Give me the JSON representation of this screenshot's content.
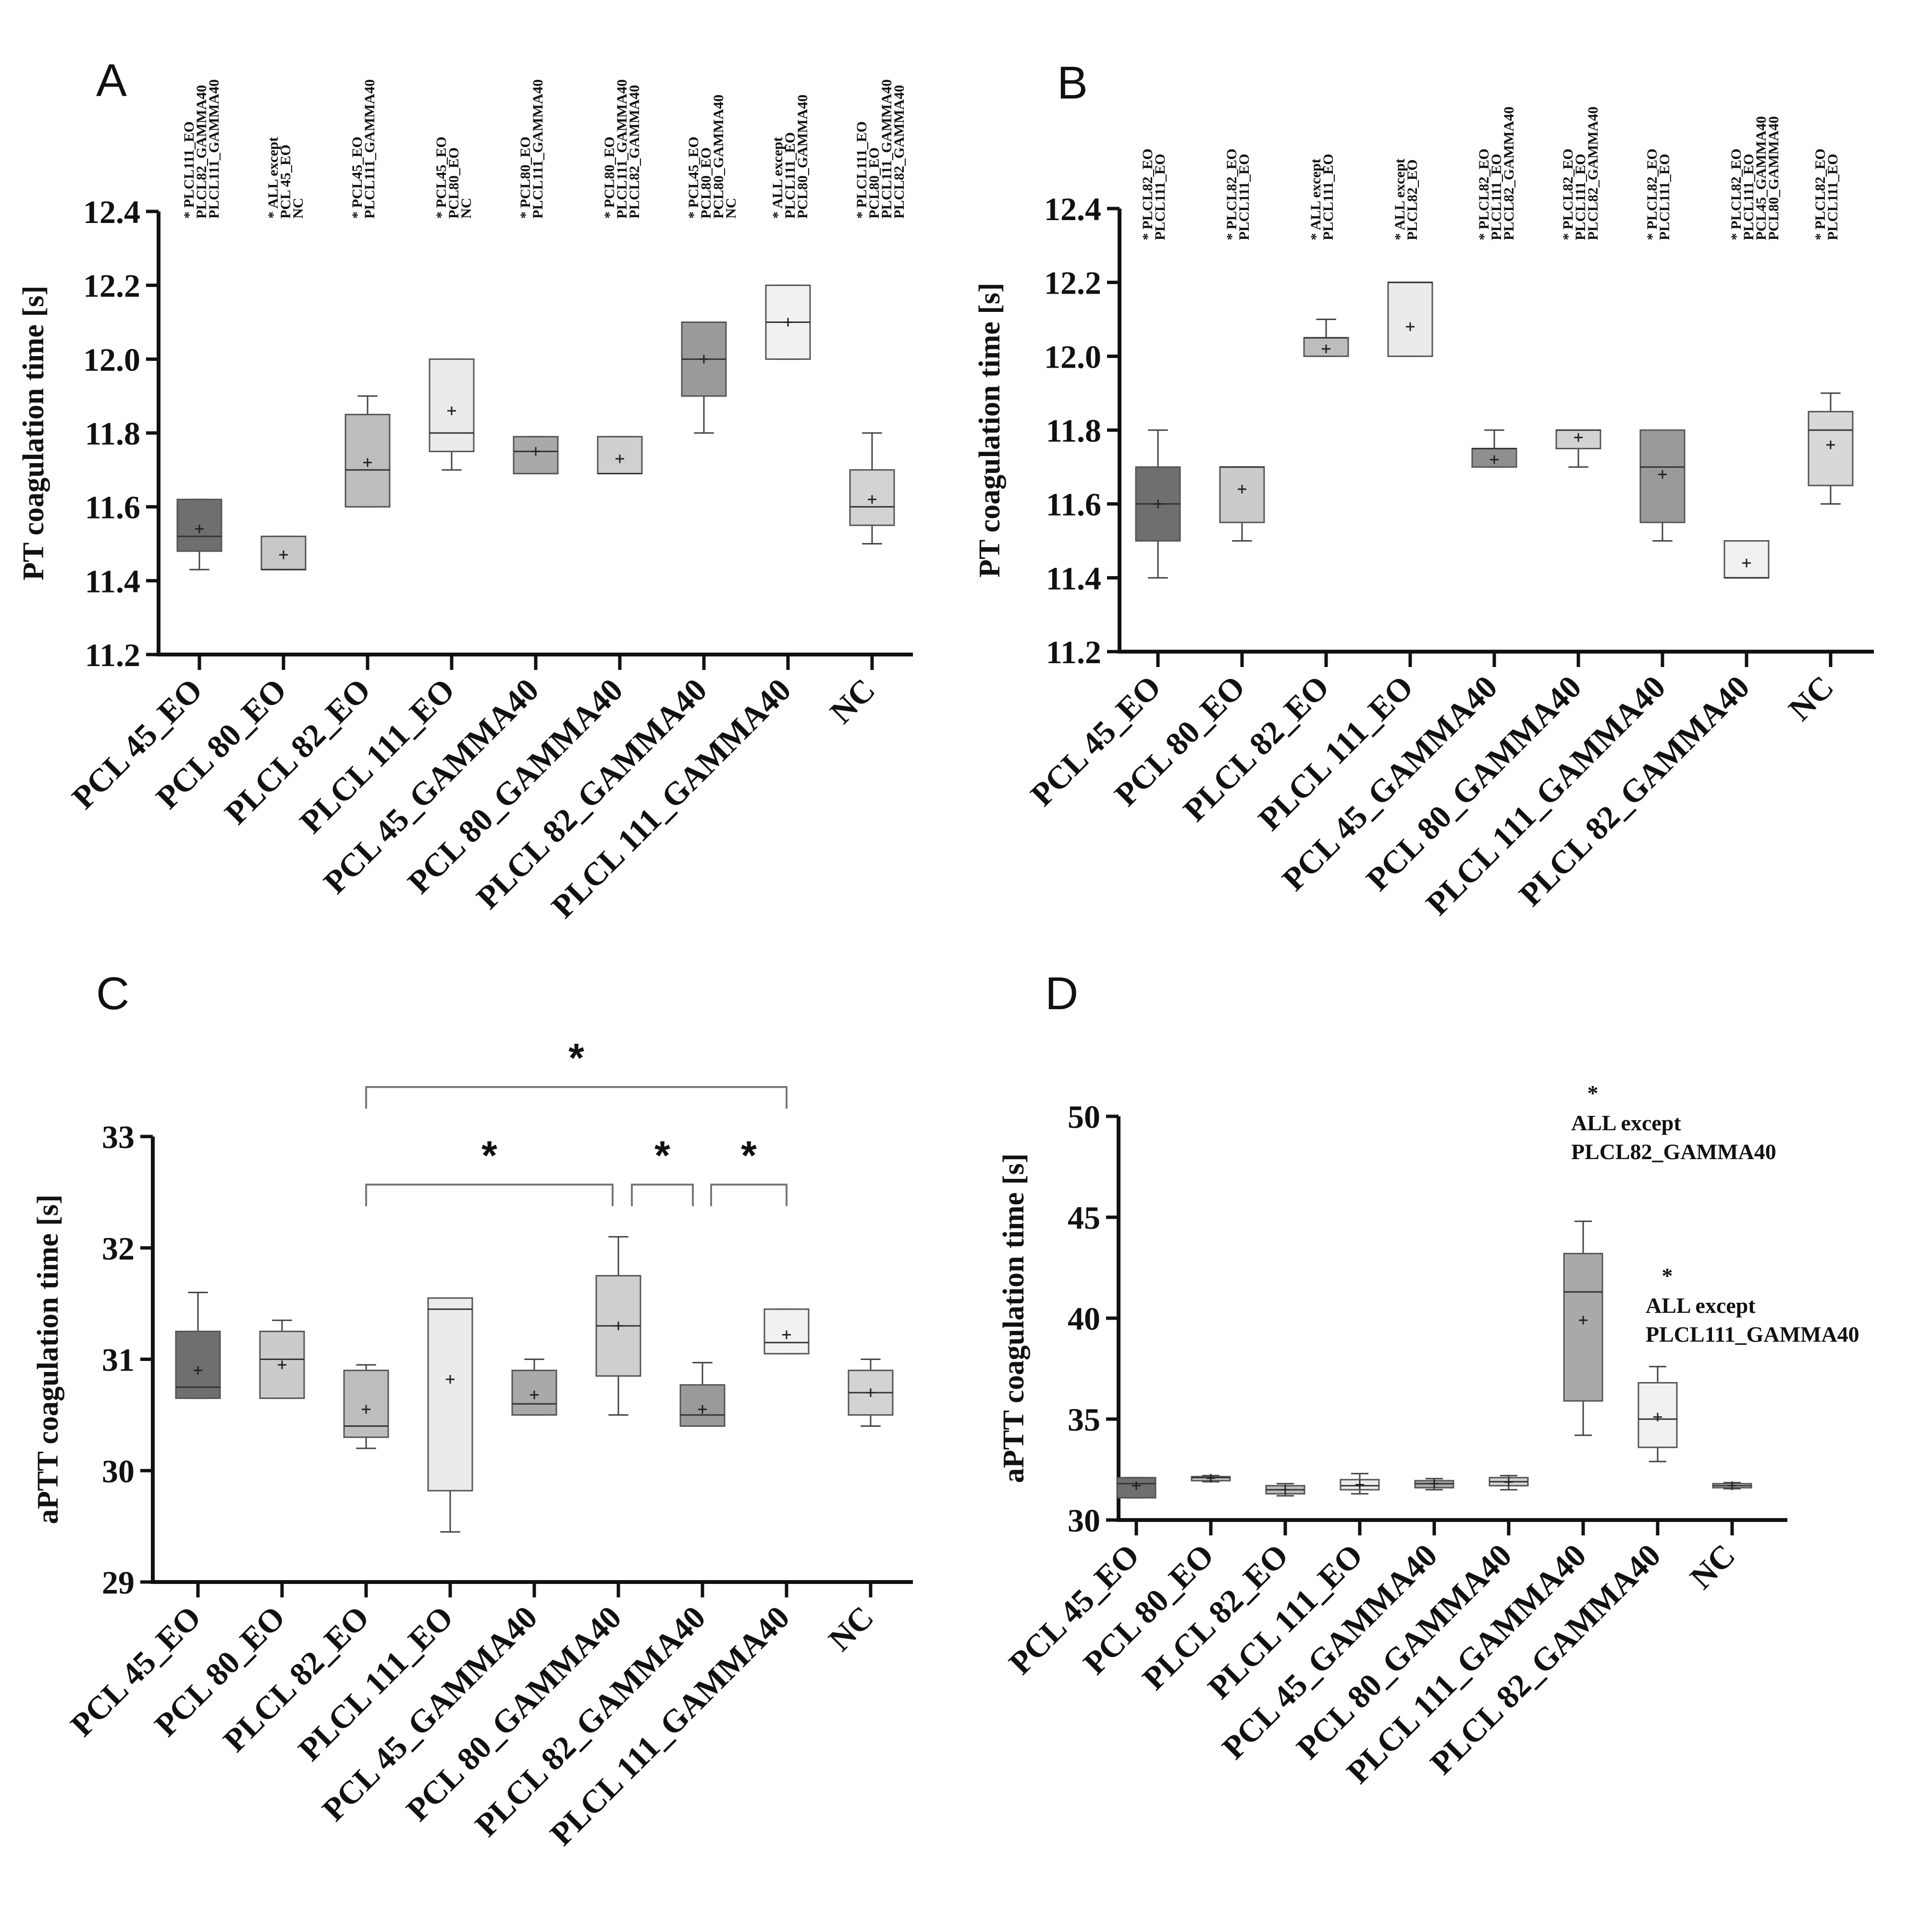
{
  "chart_data": [
    {
      "panel": "A",
      "type": "box",
      "ylabel": "PT coagulation time [s]",
      "ylim": [
        11.2,
        12.4
      ],
      "yticks": [
        "11.2",
        "11.4",
        "11.6",
        "11.8",
        "12.0",
        "12.2",
        "12.4"
      ],
      "categories": [
        "PCL 45_EO",
        "PCL 80_EO",
        "PLCL 82_EO",
        "PLCL 111_EO",
        "PCL 45_GAMMA40",
        "PCL 80_GAMMA40",
        "PLCL 82_GAMMA40",
        "PLCL 111_GAMMA40",
        "NC"
      ],
      "boxes": [
        {
          "min": 11.43,
          "q1": 11.48,
          "median": 11.52,
          "q3": 11.62,
          "max": 11.62,
          "mean": 11.54,
          "color": "#6f6f6f"
        },
        {
          "min": 11.43,
          "q1": 11.43,
          "median": 11.43,
          "q3": 11.52,
          "max": 11.52,
          "mean": 11.47,
          "color": "#c8c8c8"
        },
        {
          "min": 11.6,
          "q1": 11.6,
          "median": 11.7,
          "q3": 11.85,
          "max": 11.9,
          "mean": 11.72,
          "color": "#bdbdbd"
        },
        {
          "min": 11.7,
          "q1": 11.75,
          "median": 11.8,
          "q3": 12.0,
          "max": 12.0,
          "mean": 11.86,
          "color": "#ebebeb"
        },
        {
          "min": 11.69,
          "q1": 11.69,
          "median": 11.75,
          "q3": 11.79,
          "max": 11.79,
          "mean": 11.75,
          "color": "#a9a9a9"
        },
        {
          "min": 11.69,
          "q1": 11.69,
          "median": 11.69,
          "q3": 11.79,
          "max": 11.79,
          "mean": 11.73,
          "color": "#cfcfcf"
        },
        {
          "min": 11.8,
          "q1": 11.9,
          "median": 12.0,
          "q3": 12.1,
          "max": 12.1,
          "mean": 12.0,
          "color": "#9a9a9a"
        },
        {
          "min": 12.0,
          "q1": 12.0,
          "median": 12.1,
          "q3": 12.2,
          "max": 12.2,
          "mean": 12.1,
          "color": "#f1f1f1"
        },
        {
          "min": 11.5,
          "q1": 11.55,
          "median": 11.6,
          "q3": 11.7,
          "max": 11.8,
          "mean": 11.62,
          "color": "#d3d3d3"
        }
      ],
      "annotations": [
        [
          "* PLCL111_EO",
          "PLCL82_GAMMA40",
          "PLCL111_GAMMA40"
        ],
        [
          "* ALL except",
          "PCL 45_EO",
          "NC"
        ],
        [
          "* PCL45_EO",
          "PLCL111_GAMMA40"
        ],
        [
          "* PCL45_EO",
          "PCL80_EO",
          "NC"
        ],
        [
          "* PCL80_EO",
          "PLCL111_GAMMA40"
        ],
        [
          "* PCL80_EO",
          "PLCL111_GAMMA40",
          "PLCL82_GAMMA40"
        ],
        [
          "* PCL45_EO",
          "PCL80_EO",
          "PCL80_GAMMA40",
          "NC"
        ],
        [
          "* ALL except",
          "PLCL111_EO",
          "PCL80_GAMMA40"
        ],
        [
          "* PLCL111_EO",
          "PCL80_EO",
          "PLCL111_GAMMA40",
          "PLCL82_GAMMA40"
        ]
      ]
    },
    {
      "panel": "B",
      "type": "box",
      "ylabel": "PT coagulation time [s]",
      "ylim": [
        11.2,
        12.4
      ],
      "yticks": [
        "11.2",
        "11.4",
        "11.6",
        "11.8",
        "12.0",
        "12.2",
        "12.4"
      ],
      "categories": [
        "PCL 45_EO",
        "PCL 80_EO",
        "PLCL 82_EO",
        "PLCL 111_EO",
        "PCL 45_GAMMA40",
        "PCL 80_GAMMA40",
        "PLCL 111_GAMMA40",
        "PLCL 82_GAMMA40",
        "NC"
      ],
      "boxes": [
        {
          "min": 11.4,
          "q1": 11.5,
          "median": 11.6,
          "q3": 11.7,
          "max": 11.8,
          "mean": 11.6,
          "color": "#6f6f6f"
        },
        {
          "min": 11.5,
          "q1": 11.55,
          "median": 11.7,
          "q3": 11.7,
          "max": 11.7,
          "mean": 11.64,
          "color": "#cbcbcb"
        },
        {
          "min": 12.0,
          "q1": 12.0,
          "median": 12.05,
          "q3": 12.05,
          "max": 12.1,
          "mean": 12.02,
          "color": "#bdbdbd"
        },
        {
          "min": 12.0,
          "q1": 12.0,
          "median": 12.2,
          "q3": 12.2,
          "max": 12.2,
          "mean": 12.08,
          "color": "#ebebeb"
        },
        {
          "min": 11.7,
          "q1": 11.7,
          "median": 11.75,
          "q3": 11.75,
          "max": 11.8,
          "mean": 11.72,
          "color": "#8f8f8f"
        },
        {
          "min": 11.7,
          "q1": 11.75,
          "median": 11.8,
          "q3": 11.8,
          "max": 11.8,
          "mean": 11.78,
          "color": "#d3d3d3"
        },
        {
          "min": 11.5,
          "q1": 11.55,
          "median": 11.7,
          "q3": 11.8,
          "max": 11.8,
          "mean": 11.68,
          "color": "#9a9a9a"
        },
        {
          "min": 11.4,
          "q1": 11.4,
          "median": 11.4,
          "q3": 11.5,
          "max": 11.5,
          "mean": 11.44,
          "color": "#f1f1f1"
        },
        {
          "min": 11.6,
          "q1": 11.65,
          "median": 11.8,
          "q3": 11.85,
          "max": 11.9,
          "mean": 11.76,
          "color": "#d8d8d8"
        }
      ],
      "annotations": [
        [
          "* PLCL82_EO",
          "PLCL111_EO"
        ],
        [
          "* PLCL82_EO",
          "PLCL111_EO"
        ],
        [
          "* ALL except",
          "PLCL111_EO"
        ],
        [
          "* ALL except",
          "PLCL82_EO"
        ],
        [
          "* PLCL82_EO",
          "PLCL111_EO",
          "PLCL82_GAMMA40"
        ],
        [
          "* PLCL82_EO",
          "PLCL111_EO",
          "PLCL82_GAMMA40"
        ],
        [
          "* PLCL82_EO",
          "PLCL111_EO"
        ],
        [
          "* PLCL82_EO",
          "PLCL111_EO",
          "PCL45_GAMMA40",
          "PCL80_GAMMA40"
        ],
        [
          "* PLCL82_EO",
          "PLCL111_EO"
        ]
      ]
    },
    {
      "panel": "C",
      "type": "box",
      "ylabel": "aPTT coagulation time [s]",
      "ylim": [
        29,
        33
      ],
      "yticks": [
        "29",
        "30",
        "31",
        "32",
        "33"
      ],
      "categories": [
        "PCL 45_EO",
        "PCL 80_EO",
        "PLCL 82_EO",
        "PLCL 111_EO",
        "PCL 45_GAMMA40",
        "PCL 80_GAMMA40",
        "PLCL 82_GAMMA40",
        "PLCL 111_GAMMA40",
        "NC"
      ],
      "boxes": [
        {
          "min": 30.65,
          "q1": 30.65,
          "median": 30.75,
          "q3": 31.25,
          "max": 31.6,
          "mean": 30.9,
          "color": "#6f6f6f"
        },
        {
          "min": 30.65,
          "q1": 30.65,
          "median": 31.0,
          "q3": 31.25,
          "max": 31.35,
          "mean": 30.95,
          "color": "#cbcbcb"
        },
        {
          "min": 30.2,
          "q1": 30.3,
          "median": 30.4,
          "q3": 30.9,
          "max": 30.95,
          "mean": 30.55,
          "color": "#bdbdbd"
        },
        {
          "min": 29.45,
          "q1": 29.82,
          "median": 31.45,
          "q3": 31.55,
          "max": 31.55,
          "mean": 30.82,
          "color": "#ebebeb"
        },
        {
          "min": 30.5,
          "q1": 30.5,
          "median": 30.6,
          "q3": 30.9,
          "max": 31.0,
          "mean": 30.68,
          "color": "#a9a9a9"
        },
        {
          "min": 30.5,
          "q1": 30.85,
          "median": 31.3,
          "q3": 31.75,
          "max": 32.1,
          "mean": 31.3,
          "color": "#cfcfcf"
        },
        {
          "min": 30.4,
          "q1": 30.4,
          "median": 30.5,
          "q3": 30.77,
          "max": 30.97,
          "mean": 30.55,
          "color": "#9a9a9a"
        },
        {
          "min": 31.05,
          "q1": 31.05,
          "median": 31.15,
          "q3": 31.45,
          "max": 31.45,
          "mean": 31.22,
          "color": "#f1f1f1"
        },
        {
          "min": 30.4,
          "q1": 30.5,
          "median": 30.7,
          "q3": 30.9,
          "max": 31.0,
          "mean": 30.7,
          "color": "#d3d3d3"
        }
      ],
      "brackets": [
        {
          "from": 2,
          "to": 7,
          "level": 2,
          "label": "*"
        },
        {
          "from": 2,
          "to": 5,
          "level": 1,
          "label": "*"
        },
        {
          "from": 5,
          "to": 6,
          "level": 1,
          "label": "*"
        },
        {
          "from": 6,
          "to": 7,
          "level": 1,
          "label": "*"
        }
      ]
    },
    {
      "panel": "D",
      "type": "box",
      "ylabel": "aPTT coagulation time [s]",
      "ylim": [
        30,
        50
      ],
      "yticks": [
        "30",
        "35",
        "40",
        "45",
        "50"
      ],
      "categories": [
        "PCL 45_EO",
        "PCL 80_EO",
        "PLCL 82_EO",
        "PLCL 111_EO",
        "PCL 45_GAMMA40",
        "PCL 80_GAMMA40",
        "PLCL 111_GAMMA40",
        "PLCL 82_GAMMA40",
        "NC"
      ],
      "boxes": [
        {
          "min": 31.1,
          "q1": 31.1,
          "median": 31.8,
          "q3": 32.1,
          "max": 32.1,
          "mean": 31.7,
          "color": "#6f6f6f"
        },
        {
          "min": 31.9,
          "q1": 31.95,
          "median": 32.1,
          "q3": 32.15,
          "max": 32.2,
          "mean": 32.07,
          "color": "#cbcbcb"
        },
        {
          "min": 31.2,
          "q1": 31.3,
          "median": 31.5,
          "q3": 31.7,
          "max": 31.8,
          "mean": 31.5,
          "color": "#bdbdbd"
        },
        {
          "min": 31.3,
          "q1": 31.5,
          "median": 31.7,
          "q3": 32.0,
          "max": 32.3,
          "mean": 31.75,
          "color": "#ebebeb"
        },
        {
          "min": 31.5,
          "q1": 31.6,
          "median": 31.8,
          "q3": 31.95,
          "max": 32.05,
          "mean": 31.8,
          "color": "#a9a9a9"
        },
        {
          "min": 31.5,
          "q1": 31.7,
          "median": 31.9,
          "q3": 32.1,
          "max": 32.2,
          "mean": 31.88,
          "color": "#d3d3d3"
        },
        {
          "min": 34.2,
          "q1": 35.9,
          "median": 41.3,
          "q3": 43.2,
          "max": 44.8,
          "mean": 39.9,
          "color": "#a9a9a9"
        },
        {
          "min": 32.9,
          "q1": 33.6,
          "median": 35.0,
          "q3": 36.8,
          "max": 37.6,
          "mean": 35.1,
          "color": "#f1f1f1"
        },
        {
          "min": 31.55,
          "q1": 31.6,
          "median": 31.7,
          "q3": 31.8,
          "max": 31.85,
          "mean": 31.7,
          "color": "#d3d3d3"
        }
      ],
      "annotations": [
        {
          "star": "*",
          "line1": "ALL except",
          "line2": "PLCL82_GAMMA40"
        },
        {
          "star": "*",
          "line1": "ALL except",
          "line2": "PLCL111_GAMMA40"
        }
      ]
    }
  ]
}
